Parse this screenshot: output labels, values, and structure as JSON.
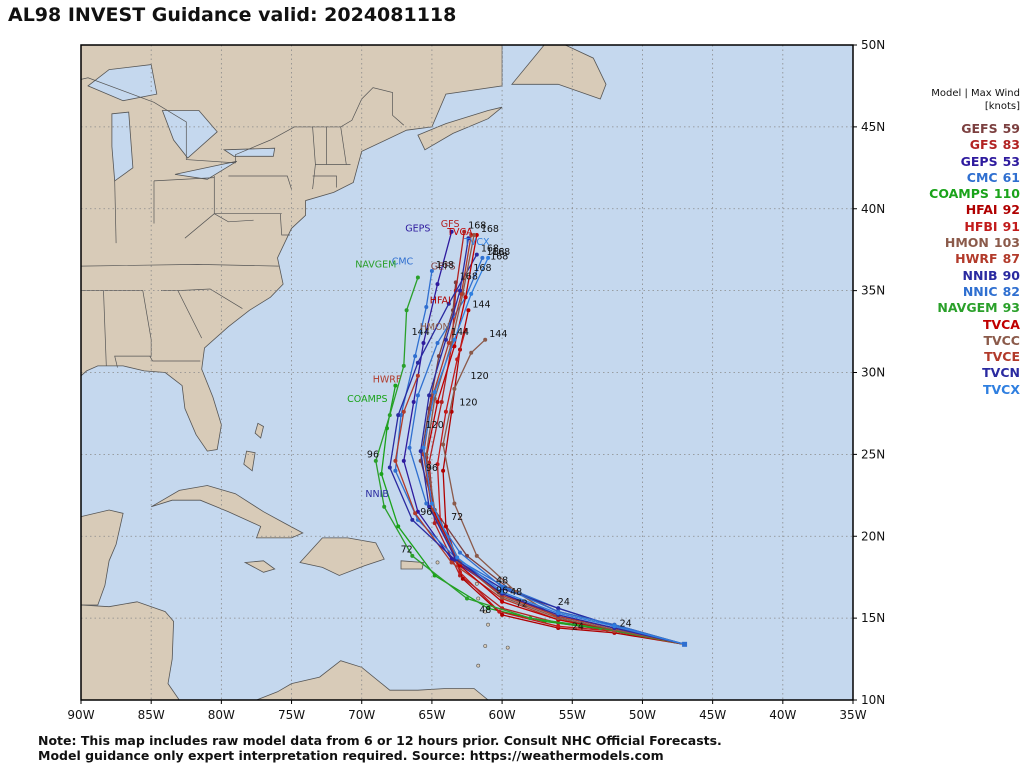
{
  "title": "AL98 INVEST Guidance valid: 2024081118",
  "legend": {
    "header_line1": "Model | Max Wind",
    "header_line2": "[knots]",
    "models": [
      {
        "name": "GEFS",
        "wind": "59",
        "color": "#7b3f3f"
      },
      {
        "name": "GFS",
        "wind": "83",
        "color": "#b22222"
      },
      {
        "name": "GEPS",
        "wind": "53",
        "color": "#2e1a9e"
      },
      {
        "name": "CMC",
        "wind": "61",
        "color": "#2f6fd0"
      },
      {
        "name": "COAMPS",
        "wind": "110",
        "color": "#1aa31a"
      },
      {
        "name": "HFAI",
        "wind": "92",
        "color": "#b00000"
      },
      {
        "name": "HFBI",
        "wind": "91",
        "color": "#c21b1b"
      },
      {
        "name": "HMON",
        "wind": "103",
        "color": "#8b5a4a"
      },
      {
        "name": "HWRF",
        "wind": "87",
        "color": "#b23a2a"
      },
      {
        "name": "NNIB",
        "wind": "90",
        "color": "#2a2aa0"
      },
      {
        "name": "NNIC",
        "wind": "82",
        "color": "#2f6fd0"
      },
      {
        "name": "NAVGEM",
        "wind": "93",
        "color": "#2aa02a"
      },
      {
        "name": "TVCA",
        "wind": "",
        "color": "#c00000"
      },
      {
        "name": "TVCC",
        "wind": "",
        "color": "#8b5a4a"
      },
      {
        "name": "TVCE",
        "wind": "",
        "color": "#b23a2a"
      },
      {
        "name": "TVCN",
        "wind": "",
        "color": "#2a2aa0"
      },
      {
        "name": "TVCX",
        "wind": "",
        "color": "#2f7fe0"
      }
    ]
  },
  "axes": {
    "lon_labels": [
      "90W",
      "85W",
      "80W",
      "75W",
      "70W",
      "65W",
      "60W",
      "55W",
      "50W",
      "45W",
      "40W",
      "35W"
    ],
    "lat_labels": [
      "50N",
      "45N",
      "40N",
      "35N",
      "30N",
      "25N",
      "20N",
      "15N",
      "10N"
    ]
  },
  "colors": {
    "ocean": "#c5d8ee",
    "land": "#d8cbb8",
    "border": "#555555"
  },
  "start": {
    "lon": -47.0,
    "lat": 13.4
  },
  "tracks": [
    {
      "model": "GEFS",
      "color": "#7b3f3f",
      "label": "GEFS",
      "label_at": [
        -64.2,
        36.3
      ],
      "end_hour": "168",
      "points": [
        [
          -47.0,
          13.4
        ],
        [
          -52.0,
          14.6
        ],
        [
          -56.0,
          15.4
        ],
        [
          -59.5,
          16.8
        ],
        [
          -62.5,
          18.8
        ],
        [
          -64.8,
          21.6
        ],
        [
          -65.8,
          24.6
        ],
        [
          -65.2,
          27.8
        ],
        [
          -64.5,
          31.0
        ],
        [
          -63.5,
          33.8
        ],
        [
          -63.3,
          35.5
        ]
      ]
    },
    {
      "model": "GFS",
      "color": "#b22222",
      "label": "GFS",
      "label_at": [
        -63.7,
        38.9
      ],
      "end_hour": "168",
      "points": [
        [
          -47.0,
          13.4
        ],
        [
          -52.0,
          14.2
        ],
        [
          -56.0,
          14.7
        ],
        [
          -60.0,
          15.6
        ],
        [
          -63.0,
          17.6
        ],
        [
          -64.8,
          20.8
        ],
        [
          -65.2,
          24.5
        ],
        [
          -64.3,
          28.2
        ],
        [
          -63.6,
          31.6
        ],
        [
          -63.3,
          35.0
        ],
        [
          -62.7,
          38.6
        ]
      ]
    },
    {
      "model": "GEPS",
      "color": "#2e1a9e",
      "label": "GEPS",
      "label_at": [
        -66.0,
        38.6
      ],
      "end_hour": "",
      "points": [
        [
          -47.0,
          13.4
        ],
        [
          -52.0,
          14.4
        ],
        [
          -56.0,
          15.1
        ],
        [
          -60.0,
          16.5
        ],
        [
          -63.6,
          18.6
        ],
        [
          -66.0,
          21.5
        ],
        [
          -67.0,
          24.6
        ],
        [
          -66.3,
          28.2
        ],
        [
          -65.6,
          31.8
        ],
        [
          -64.6,
          35.4
        ],
        [
          -63.6,
          38.6
        ]
      ]
    },
    {
      "model": "CMC",
      "color": "#2f6fd0",
      "label": "CMC",
      "label_at": [
        -67.1,
        36.6
      ],
      "end_hour": "168",
      "points": [
        [
          -47.0,
          13.4
        ],
        [
          -52.0,
          14.5
        ],
        [
          -56.0,
          15.6
        ],
        [
          -59.8,
          16.9
        ],
        [
          -63.2,
          18.6
        ],
        [
          -66.0,
          21.0
        ],
        [
          -67.6,
          24.0
        ],
        [
          -67.2,
          27.4
        ],
        [
          -66.2,
          31.0
        ],
        [
          -65.4,
          34.0
        ],
        [
          -65.0,
          36.2
        ]
      ]
    },
    {
      "model": "COAMPS",
      "color": "#1aa31a",
      "label": "COAMPS",
      "label_at": [
        -69.6,
        28.2
      ],
      "end_hour": "",
      "points": [
        [
          -47.0,
          13.4
        ],
        [
          -52.5,
          14.3
        ],
        [
          -57.0,
          14.8
        ],
        [
          -61.0,
          15.6
        ],
        [
          -64.8,
          17.6
        ],
        [
          -67.4,
          20.6
        ],
        [
          -68.6,
          23.8
        ],
        [
          -68.2,
          26.6
        ],
        [
          -67.6,
          29.2
        ]
      ]
    },
    {
      "model": "HFAI",
      "color": "#b00000",
      "label": "HFAI",
      "label_at": [
        -64.4,
        34.2
      ],
      "end_hour": "144",
      "points": [
        [
          -47.0,
          13.4
        ],
        [
          -52.0,
          14.1
        ],
        [
          -56.0,
          14.4
        ],
        [
          -60.0,
          15.2
        ],
        [
          -62.8,
          17.4
        ],
        [
          -64.0,
          20.6
        ],
        [
          -64.2,
          24.0
        ],
        [
          -63.6,
          27.6
        ],
        [
          -63.0,
          31.4
        ],
        [
          -62.4,
          33.8
        ]
      ]
    },
    {
      "model": "HFBI",
      "color": "#c21b1b",
      "label": "",
      "label_at": [
        0,
        0
      ],
      "end_hour": "",
      "points": [
        [
          -47.0,
          13.4
        ],
        [
          -52.0,
          14.2
        ],
        [
          -56.0,
          14.5
        ],
        [
          -60.2,
          15.4
        ],
        [
          -63.0,
          17.8
        ],
        [
          -64.4,
          21.0
        ],
        [
          -64.6,
          24.4
        ],
        [
          -64.0,
          27.6
        ],
        [
          -63.2,
          30.8
        ],
        [
          -62.6,
          32.6
        ]
      ]
    },
    {
      "model": "HMON",
      "color": "#8b5a4a",
      "label": "HMON",
      "label_at": [
        -64.8,
        32.6
      ],
      "end_hour": "144",
      "points": [
        [
          -47.0,
          13.4
        ],
        [
          -52.0,
          14.3
        ],
        [
          -56.0,
          15.0
        ],
        [
          -59.0,
          16.6
        ],
        [
          -61.8,
          18.8
        ],
        [
          -63.4,
          22.0
        ],
        [
          -64.2,
          25.6
        ],
        [
          -63.4,
          29.0
        ],
        [
          -62.2,
          31.2
        ],
        [
          -61.2,
          32.0
        ]
      ]
    },
    {
      "model": "HWRF",
      "color": "#b23a2a",
      "label": "HWRF",
      "label_at": [
        -68.2,
        29.4
      ],
      "end_hour": "",
      "points": [
        [
          -47.0,
          13.4
        ],
        [
          -52.0,
          14.2
        ],
        [
          -56.0,
          14.9
        ],
        [
          -60.0,
          16.2
        ],
        [
          -63.6,
          18.4
        ],
        [
          -66.2,
          21.4
        ],
        [
          -67.6,
          24.6
        ],
        [
          -67.0,
          27.6
        ],
        [
          -66.0,
          29.8
        ]
      ]
    },
    {
      "model": "NNIB",
      "color": "#2a2aa0",
      "label": "NNIB",
      "label_at": [
        -68.9,
        22.4
      ],
      "end_hour": "168",
      "points": [
        [
          -47.0,
          13.4
        ],
        [
          -52.0,
          14.5
        ],
        [
          -56.0,
          15.6
        ],
        [
          -60.0,
          16.8
        ],
        [
          -63.4,
          18.6
        ],
        [
          -66.4,
          21.0
        ],
        [
          -68.0,
          24.2
        ],
        [
          -67.4,
          27.4
        ],
        [
          -66.0,
          30.6
        ],
        [
          -63.8,
          34.2
        ],
        [
          -61.8,
          37.2
        ]
      ]
    },
    {
      "model": "NNIC",
      "color": "#2f6fd0",
      "label": "",
      "label_at": [
        0,
        0
      ],
      "end_hour": "168",
      "points": [
        [
          -47.0,
          13.4
        ],
        [
          -52.0,
          14.6
        ],
        [
          -56.0,
          15.4
        ],
        [
          -60.0,
          16.9
        ],
        [
          -63.0,
          19.0
        ],
        [
          -65.4,
          22.0
        ],
        [
          -66.6,
          25.4
        ],
        [
          -66.0,
          28.6
        ],
        [
          -64.6,
          31.8
        ],
        [
          -62.6,
          34.6
        ],
        [
          -61.4,
          37.0
        ]
      ]
    },
    {
      "model": "NAVGEM",
      "color": "#2aa02a",
      "label": "NAVGEM",
      "label_at": [
        -69.0,
        36.4
      ],
      "end_hour": "",
      "points": [
        [
          -47.0,
          13.4
        ],
        [
          -53.0,
          14.4
        ],
        [
          -58.0,
          15.0
        ],
        [
          -62.5,
          16.2
        ],
        [
          -66.4,
          18.8
        ],
        [
          -68.4,
          21.8
        ],
        [
          -69.0,
          24.6
        ],
        [
          -68.0,
          27.4
        ],
        [
          -67.0,
          30.4
        ],
        [
          -66.8,
          33.8
        ],
        [
          -66.0,
          35.8
        ]
      ]
    },
    {
      "model": "TVCA",
      "color": "#c00000",
      "label": "TVCA",
      "label_at": [
        -63.0,
        38.4
      ],
      "end_hour": "168",
      "points": [
        [
          -47.0,
          13.4
        ],
        [
          -52.0,
          14.3
        ],
        [
          -56.0,
          14.9
        ],
        [
          -60.0,
          16.0
        ],
        [
          -63.0,
          18.2
        ],
        [
          -64.8,
          21.4
        ],
        [
          -65.4,
          24.8
        ],
        [
          -64.6,
          28.2
        ],
        [
          -63.4,
          31.6
        ],
        [
          -62.6,
          34.6
        ],
        [
          -61.8,
          38.4
        ]
      ]
    },
    {
      "model": "TVCC",
      "color": "#8b5a4a",
      "label": "",
      "label_at": [
        0,
        0
      ],
      "end_hour": "",
      "points": [
        [
          -47.0,
          13.4
        ],
        [
          -52.0,
          14.3
        ],
        [
          -56.0,
          15.0
        ],
        [
          -60.0,
          16.3
        ],
        [
          -63.0,
          18.4
        ],
        [
          -64.8,
          21.6
        ],
        [
          -65.4,
          25.0
        ],
        [
          -64.8,
          28.4
        ],
        [
          -63.6,
          31.8
        ],
        [
          -62.8,
          34.8
        ],
        [
          -62.0,
          38.4
        ]
      ]
    },
    {
      "model": "TVCE",
      "color": "#b23a2a",
      "label": "",
      "label_at": [
        0,
        0
      ],
      "end_hour": "",
      "points": [
        [
          -47.0,
          13.4
        ],
        [
          -52.0,
          14.4
        ],
        [
          -56.0,
          15.1
        ],
        [
          -60.0,
          16.4
        ],
        [
          -63.2,
          18.5
        ],
        [
          -65.0,
          21.6
        ],
        [
          -65.6,
          25.0
        ],
        [
          -65.0,
          28.4
        ],
        [
          -63.8,
          31.8
        ],
        [
          -62.9,
          34.8
        ],
        [
          -62.2,
          38.4
        ]
      ]
    },
    {
      "model": "TVCN",
      "color": "#2a2aa0",
      "label": "",
      "label_at": [
        0,
        0
      ],
      "end_hour": "",
      "points": [
        [
          -47.0,
          13.4
        ],
        [
          -52.0,
          14.4
        ],
        [
          -56.0,
          15.2
        ],
        [
          -60.0,
          16.5
        ],
        [
          -63.3,
          18.6
        ],
        [
          -65.2,
          21.8
        ],
        [
          -65.8,
          25.2
        ],
        [
          -65.2,
          28.6
        ],
        [
          -64.0,
          32.0
        ],
        [
          -63.0,
          35.0
        ],
        [
          -62.4,
          38.2
        ]
      ]
    },
    {
      "model": "TVCX",
      "color": "#2f7fe0",
      "label": "TVCX",
      "label_at": [
        -61.8,
        37.8
      ],
      "end_hour": "168",
      "points": [
        [
          -47.0,
          13.4
        ],
        [
          -52.0,
          14.5
        ],
        [
          -56.0,
          15.3
        ],
        [
          -60.0,
          16.6
        ],
        [
          -63.2,
          18.7
        ],
        [
          -65.0,
          22.0
        ],
        [
          -65.6,
          25.4
        ],
        [
          -64.8,
          28.8
        ],
        [
          -63.4,
          32.0
        ],
        [
          -62.2,
          34.8
        ],
        [
          -61.0,
          37.0
        ]
      ]
    }
  ],
  "hour_marks": [
    {
      "text": "24",
      "at": [
        -51.2,
        14.5
      ]
    },
    {
      "text": "24",
      "at": [
        -55.6,
        15.8
      ]
    },
    {
      "text": "24",
      "at": [
        -54.6,
        14.3
      ]
    },
    {
      "text": "48",
      "at": [
        -60.0,
        17.1
      ]
    },
    {
      "text": "48",
      "at": [
        -59.0,
        16.4
      ]
    },
    {
      "text": "48",
      "at": [
        -61.2,
        15.3
      ]
    },
    {
      "text": "72",
      "at": [
        -58.6,
        15.7
      ]
    },
    {
      "text": "72",
      "at": [
        -63.2,
        21.0
      ]
    },
    {
      "text": "72",
      "at": [
        -66.8,
        19.0
      ]
    },
    {
      "text": "96",
      "at": [
        -60.0,
        16.5
      ]
    },
    {
      "text": "96",
      "at": [
        -65.4,
        21.3
      ]
    },
    {
      "text": "96",
      "at": [
        -69.2,
        24.8
      ]
    },
    {
      "text": "96",
      "at": [
        -65.0,
        24.0
      ]
    },
    {
      "text": "120",
      "at": [
        -62.4,
        28.0
      ]
    },
    {
      "text": "120",
      "at": [
        -61.6,
        29.6
      ]
    },
    {
      "text": "120",
      "at": [
        -64.8,
        26.6
      ]
    },
    {
      "text": "144",
      "at": [
        -65.8,
        32.3
      ]
    },
    {
      "text": "144",
      "at": [
        -63.0,
        32.3
      ]
    },
    {
      "text": "168",
      "at": [
        -61.4,
        36.2
      ]
    },
    {
      "text": "168",
      "at": [
        -60.2,
        36.9
      ]
    }
  ],
  "footnote_line1": "Note: This map includes raw model data from 6 or 12 hours prior. Consult NHC Official Forecasts.",
  "footnote_line2": "Model guidance only expert interpretation required. Source: https://weathermodels.com"
}
